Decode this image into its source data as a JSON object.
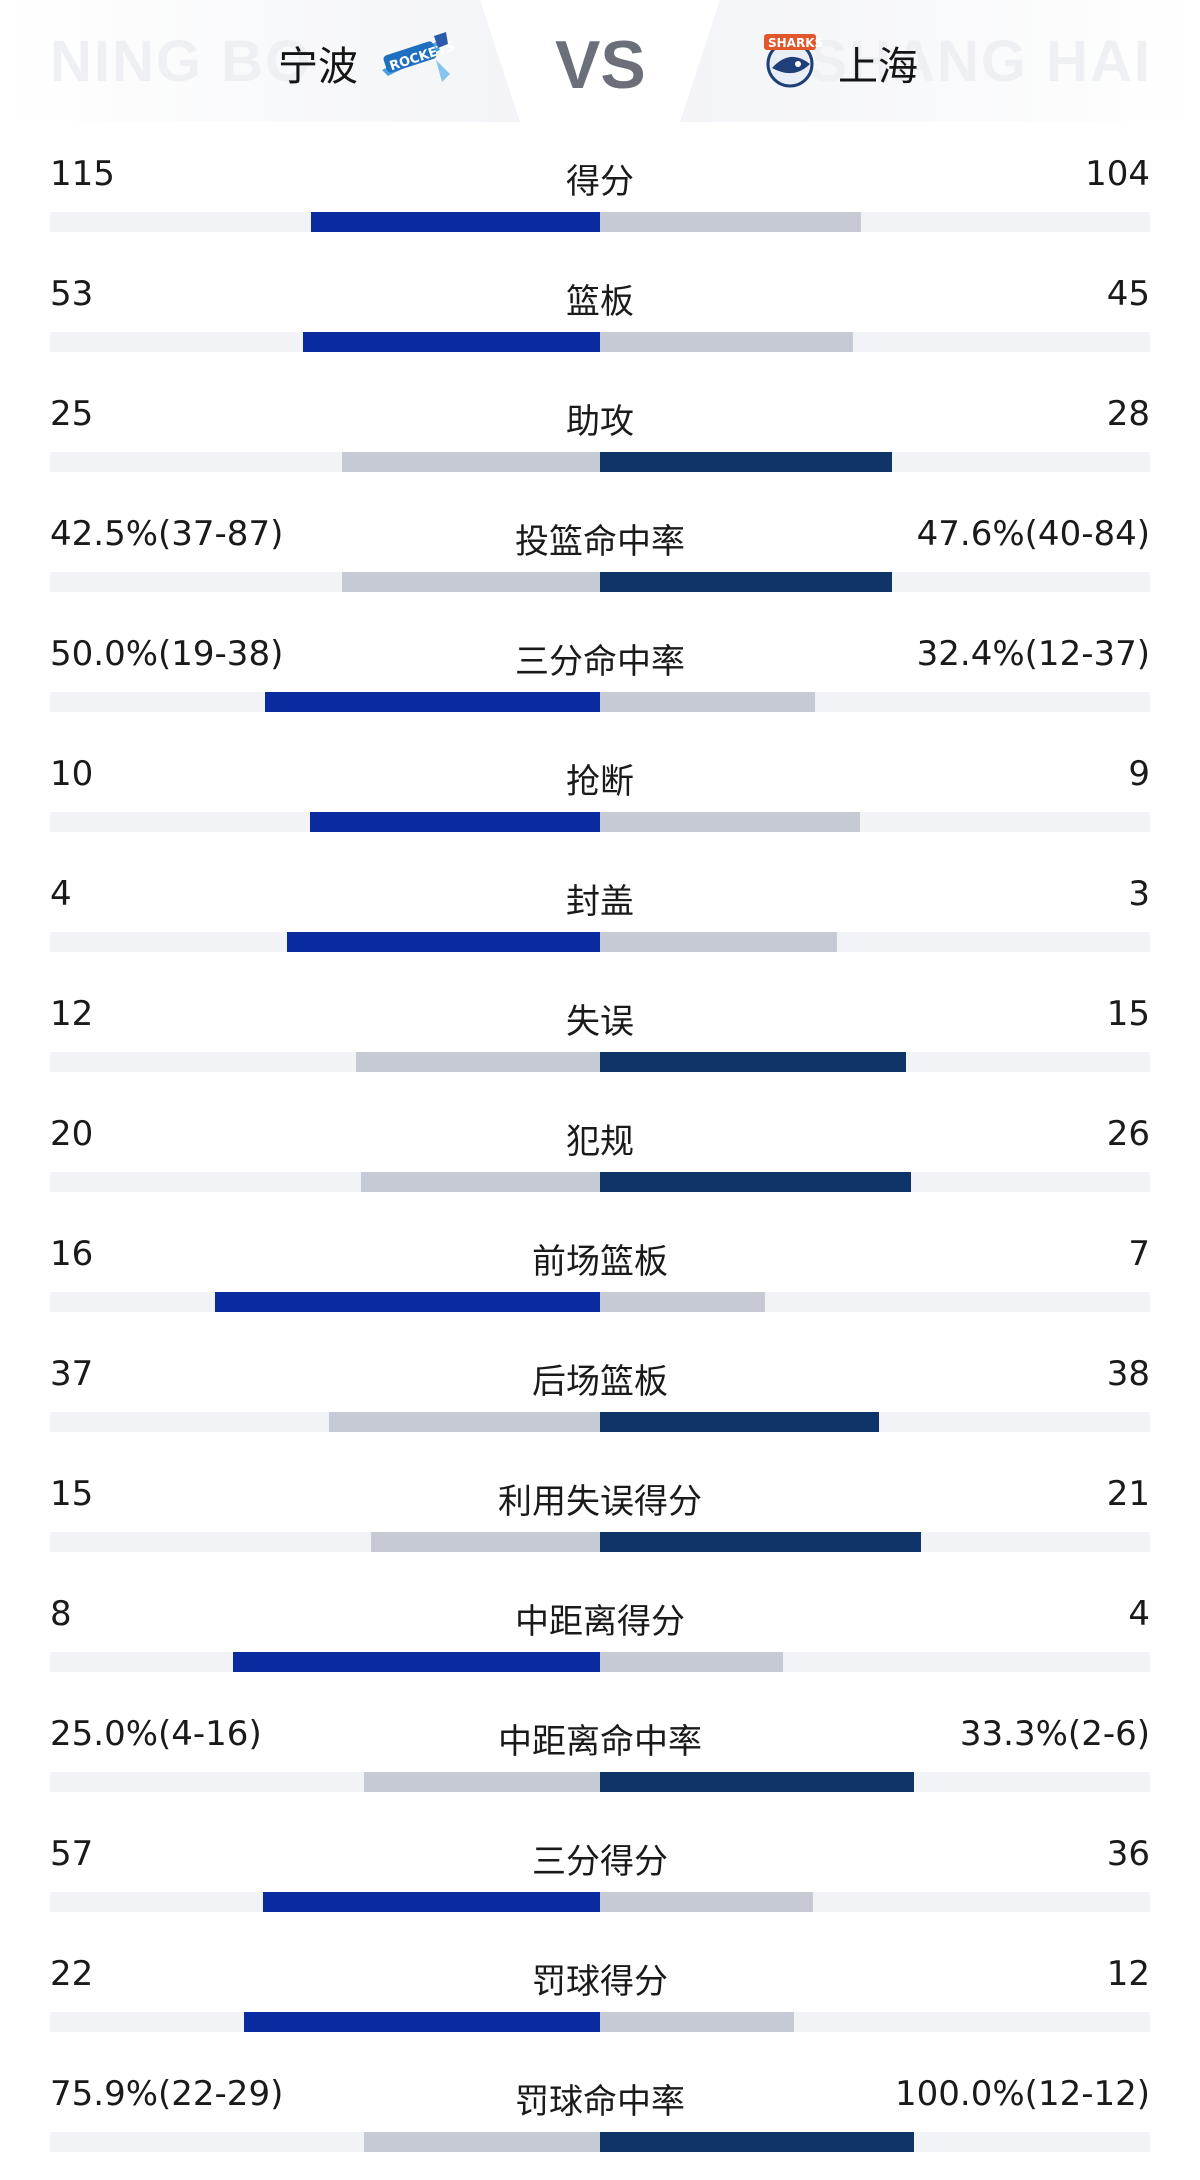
{
  "header": {
    "home_watermark": "NING BO",
    "away_watermark": "SHANG HAI",
    "home_name": "宁波",
    "away_name": "上海",
    "vs_label": "VS",
    "home_logo_icon": "ningbo-rockets-logo-icon",
    "away_logo_icon": "shanghai-sharks-logo-icon"
  },
  "colors": {
    "home_dominant": "#0a2aa0",
    "away_dominant": "#0f3568",
    "weaker": "#c6cad4",
    "track": "#f2f3f6"
  },
  "chart_data": {
    "type": "bar",
    "layout": "diverging-comparison",
    "series": [
      {
        "name": "宁波",
        "values": [
          115,
          53,
          25,
          42.5,
          50.0,
          10,
          4,
          12,
          20,
          16,
          37,
          15,
          8,
          25.0,
          57,
          22,
          75.9
        ]
      },
      {
        "name": "上海",
        "values": [
          104,
          45,
          28,
          47.6,
          32.4,
          9,
          3,
          15,
          26,
          7,
          38,
          21,
          4,
          33.3,
          36,
          12,
          100.0
        ]
      }
    ],
    "categories": [
      "得分",
      "篮板",
      "助攻",
      "投篮命中率",
      "三分命中率",
      "抢断",
      "封盖",
      "失误",
      "犯规",
      "前场篮板",
      "后场篮板",
      "利用失误得分",
      "中距离得分",
      "中距离命中率",
      "三分得分",
      "罚球得分",
      "罚球命中率"
    ],
    "rows": [
      {
        "label": "得分",
        "home_text": "115",
        "away_text": "104",
        "home_share": 0.525,
        "away_share": 0.475,
        "home_dark": true
      },
      {
        "label": "篮板",
        "home_text": "53",
        "away_text": "45",
        "home_share": 0.54,
        "away_share": 0.46,
        "home_dark": true
      },
      {
        "label": "助攻",
        "home_text": "25",
        "away_text": "28",
        "home_share": 0.47,
        "away_share": 0.53,
        "home_dark": false
      },
      {
        "label": "投篮命中率",
        "home_text": "42.5%(37-87)",
        "away_text": "47.6%(40-84)",
        "home_share": 0.47,
        "away_share": 0.53,
        "home_dark": false
      },
      {
        "label": "三分命中率",
        "home_text": "50.0%(19-38)",
        "away_text": "32.4%(12-37)",
        "home_share": 0.61,
        "away_share": 0.39,
        "home_dark": true
      },
      {
        "label": "抢断",
        "home_text": "10",
        "away_text": "9",
        "home_share": 0.527,
        "away_share": 0.473,
        "home_dark": true
      },
      {
        "label": "封盖",
        "home_text": "4",
        "away_text": "3",
        "home_share": 0.57,
        "away_share": 0.43,
        "home_dark": true
      },
      {
        "label": "失误",
        "home_text": "12",
        "away_text": "15",
        "home_share": 0.444,
        "away_share": 0.556,
        "home_dark": false
      },
      {
        "label": "犯规",
        "home_text": "20",
        "away_text": "26",
        "home_share": 0.435,
        "away_share": 0.565,
        "home_dark": false
      },
      {
        "label": "前场篮板",
        "home_text": "16",
        "away_text": "7",
        "home_share": 0.7,
        "away_share": 0.3,
        "home_dark": true
      },
      {
        "label": "后场篮板",
        "home_text": "37",
        "away_text": "38",
        "home_share": 0.493,
        "away_share": 0.507,
        "home_dark": false
      },
      {
        "label": "利用失误得分",
        "home_text": "15",
        "away_text": "21",
        "home_share": 0.417,
        "away_share": 0.583,
        "home_dark": false
      },
      {
        "label": "中距离得分",
        "home_text": "8",
        "away_text": "4",
        "home_share": 0.667,
        "away_share": 0.333,
        "home_dark": true
      },
      {
        "label": "中距离命中率",
        "home_text": "25.0%(4-16)",
        "away_text": "33.3%(2-6)",
        "home_share": 0.43,
        "away_share": 0.57,
        "home_dark": false
      },
      {
        "label": "三分得分",
        "home_text": "57",
        "away_text": "36",
        "home_share": 0.613,
        "away_share": 0.387,
        "home_dark": true
      },
      {
        "label": "罚球得分",
        "home_text": "22",
        "away_text": "12",
        "home_share": 0.647,
        "away_share": 0.353,
        "home_dark": true
      },
      {
        "label": "罚球命中率",
        "home_text": "75.9%(22-29)",
        "away_text": "100.0%(12-12)",
        "home_share": 0.43,
        "away_share": 0.57,
        "home_dark": false
      }
    ]
  }
}
